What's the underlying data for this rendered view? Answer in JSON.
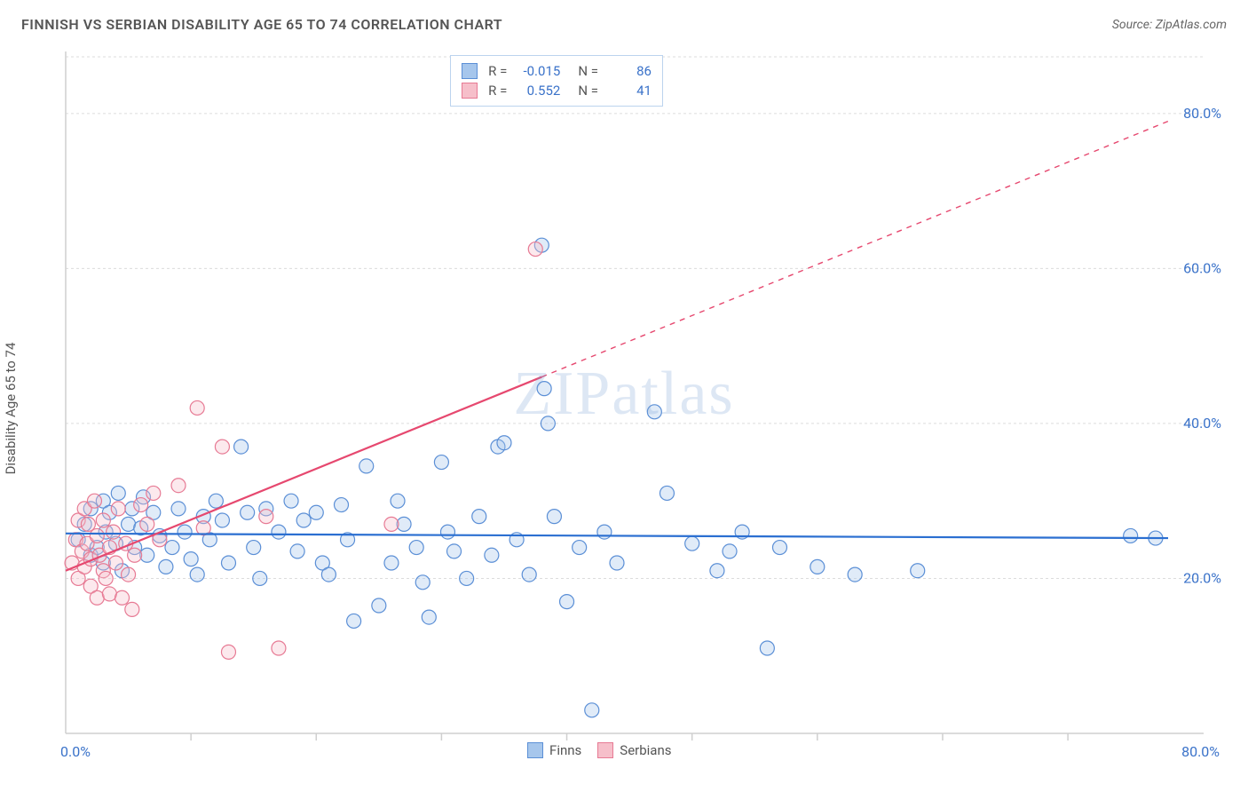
{
  "header": {
    "title": "FINNISH VS SERBIAN DISABILITY AGE 65 TO 74 CORRELATION CHART",
    "source": "Source: ZipAtlas.com"
  },
  "watermark": "ZIPatlas",
  "ylabel": "Disability Age 65 to 74",
  "chart": {
    "type": "scatter",
    "xlim": [
      0,
      88
    ],
    "ylim": [
      0,
      88
    ],
    "x_origin_label": "0.0%",
    "x_end_label": "80.0%",
    "y_tick_values": [
      20,
      40,
      60,
      80
    ],
    "y_tick_labels": [
      "20.0%",
      "40.0%",
      "60.0%",
      "80.0%"
    ],
    "x_ticks": [
      10,
      20,
      30,
      40,
      50,
      60,
      70,
      80
    ],
    "background_color": "#ffffff",
    "gridline_color": "#dcdcdc",
    "gridline_dash": [
      3,
      3
    ],
    "axis_color": "#cfcfcf",
    "tick_label_color": "#3a72c9",
    "axis_label_color": "#555555",
    "marker_radius": 8,
    "marker_stroke_width": 1.2,
    "marker_fill_opacity": 0.35,
    "trendline_width": 2.2
  },
  "series": [
    {
      "name": "Finns",
      "color_fill": "#a6c6ec",
      "color_stroke": "#5b8fd6",
      "trend_color": "#2b6fd1",
      "R": "-0.015",
      "N": "86",
      "trend": {
        "x1": 0,
        "y1": 25.8,
        "x2": 88,
        "y2": 25.2,
        "dash": null
      },
      "points": [
        [
          1,
          25
        ],
        [
          1.5,
          27
        ],
        [
          2,
          23
        ],
        [
          2,
          29
        ],
        [
          2.5,
          24
        ],
        [
          3,
          30
        ],
        [
          3,
          22
        ],
        [
          3.2,
          26
        ],
        [
          3.5,
          28.5
        ],
        [
          4,
          24.5
        ],
        [
          4.2,
          31
        ],
        [
          4.5,
          21
        ],
        [
          5,
          27
        ],
        [
          5.3,
          29
        ],
        [
          5.5,
          24
        ],
        [
          6,
          26.5
        ],
        [
          6.2,
          30.5
        ],
        [
          6.5,
          23
        ],
        [
          7,
          28.5
        ],
        [
          7.5,
          25.5
        ],
        [
          8,
          21.5
        ],
        [
          8.5,
          24
        ],
        [
          9,
          29
        ],
        [
          9.5,
          26
        ],
        [
          10,
          22.5
        ],
        [
          10.5,
          20.5
        ],
        [
          11,
          28
        ],
        [
          11.5,
          25
        ],
        [
          12,
          30
        ],
        [
          12.5,
          27.5
        ],
        [
          13,
          22
        ],
        [
          14,
          37
        ],
        [
          14.5,
          28.5
        ],
        [
          15,
          24
        ],
        [
          15.5,
          20
        ],
        [
          16,
          29
        ],
        [
          17,
          26
        ],
        [
          18,
          30
        ],
        [
          18.5,
          23.5
        ],
        [
          19,
          27.5
        ],
        [
          20,
          28.5
        ],
        [
          20.5,
          22
        ],
        [
          21,
          20.5
        ],
        [
          22,
          29.5
        ],
        [
          22.5,
          25
        ],
        [
          23,
          14.5
        ],
        [
          24,
          34.5
        ],
        [
          25,
          16.5
        ],
        [
          26,
          22
        ],
        [
          26.5,
          30
        ],
        [
          27,
          27
        ],
        [
          28,
          24
        ],
        [
          28.5,
          19.5
        ],
        [
          29,
          15
        ],
        [
          30,
          35
        ],
        [
          30.5,
          26
        ],
        [
          31,
          23.5
        ],
        [
          32,
          20
        ],
        [
          33,
          28
        ],
        [
          34,
          23
        ],
        [
          34.5,
          37
        ],
        [
          35,
          37.5
        ],
        [
          36,
          25
        ],
        [
          37,
          20.5
        ],
        [
          38,
          63
        ],
        [
          38.2,
          44.5
        ],
        [
          38.5,
          40
        ],
        [
          39,
          28
        ],
        [
          40,
          17
        ],
        [
          41,
          24
        ],
        [
          42,
          3
        ],
        [
          43,
          26
        ],
        [
          44,
          22
        ],
        [
          47,
          41.5
        ],
        [
          48,
          31
        ],
        [
          50,
          24.5
        ],
        [
          52,
          21
        ],
        [
          53,
          23.5
        ],
        [
          54,
          26
        ],
        [
          56,
          11
        ],
        [
          57,
          24
        ],
        [
          60,
          21.5
        ],
        [
          63,
          20.5
        ],
        [
          68,
          21
        ],
        [
          85,
          25.5
        ],
        [
          87,
          25.2
        ]
      ]
    },
    {
      "name": "Serbians",
      "color_fill": "#f6bfca",
      "color_stroke": "#e77a94",
      "trend_color": "#e6486f",
      "R": "0.552",
      "N": "41",
      "trend_solid": {
        "x1": 0,
        "y1": 21,
        "x2": 38,
        "y2": 46
      },
      "trend_dash": {
        "x1": 38,
        "y1": 46,
        "x2": 88,
        "y2": 79
      },
      "points": [
        [
          0.5,
          22
        ],
        [
          0.8,
          25
        ],
        [
          1,
          27.5
        ],
        [
          1,
          20
        ],
        [
          1.3,
          23.5
        ],
        [
          1.5,
          29
        ],
        [
          1.5,
          21.5
        ],
        [
          1.7,
          24.5
        ],
        [
          1.8,
          27
        ],
        [
          2,
          22.5
        ],
        [
          2,
          19
        ],
        [
          2.3,
          30
        ],
        [
          2.5,
          25.5
        ],
        [
          2.5,
          17.5
        ],
        [
          2.7,
          23
        ],
        [
          3,
          27.5
        ],
        [
          3,
          21
        ],
        [
          3.2,
          20
        ],
        [
          3.5,
          24
        ],
        [
          3.5,
          18
        ],
        [
          3.8,
          26
        ],
        [
          4,
          22
        ],
        [
          4.2,
          29
        ],
        [
          4.5,
          17.5
        ],
        [
          4.8,
          24.5
        ],
        [
          5,
          20.5
        ],
        [
          5.3,
          16
        ],
        [
          5.5,
          23
        ],
        [
          6,
          29.5
        ],
        [
          6.5,
          27
        ],
        [
          7,
          31
        ],
        [
          7.5,
          25
        ],
        [
          9,
          32
        ],
        [
          10.5,
          42
        ],
        [
          11,
          26.5
        ],
        [
          12.5,
          37
        ],
        [
          13,
          10.5
        ],
        [
          16,
          28
        ],
        [
          17,
          11
        ],
        [
          26,
          27
        ],
        [
          37.5,
          62.5
        ]
      ]
    }
  ],
  "stats_box": {
    "top_pct": 1.5,
    "left_pct": 36
  },
  "bottom_legend": {
    "left_pct": 43,
    "items": [
      "Finns",
      "Serbians"
    ]
  }
}
